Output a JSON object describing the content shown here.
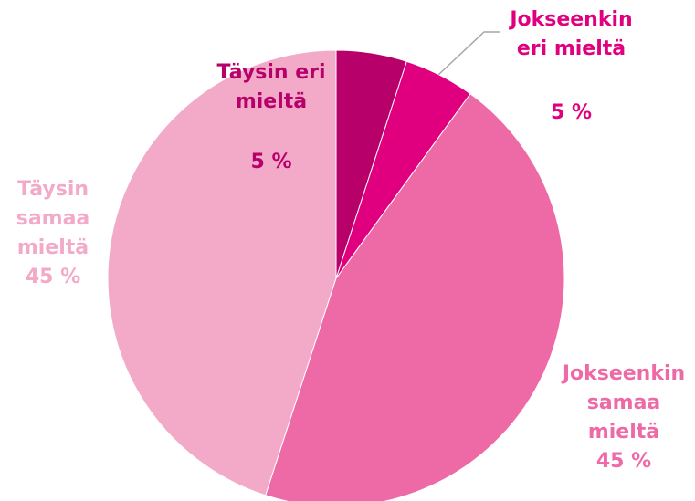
{
  "chart_data": {
    "type": "pie",
    "categories": [
      "Täysin eri mieltä",
      "Jokseenkin eri mieltä",
      "Jokseenkin samaa mieltä",
      "Täysin samaa mieltä"
    ],
    "values": [
      5,
      5,
      45,
      45
    ],
    "value_labels": [
      "5 %",
      "5 %",
      "45 %",
      "45 %"
    ],
    "colors": [
      "#b8006b",
      "#e0007f",
      "#ee6aa7",
      "#f2aac8"
    ]
  }
}
